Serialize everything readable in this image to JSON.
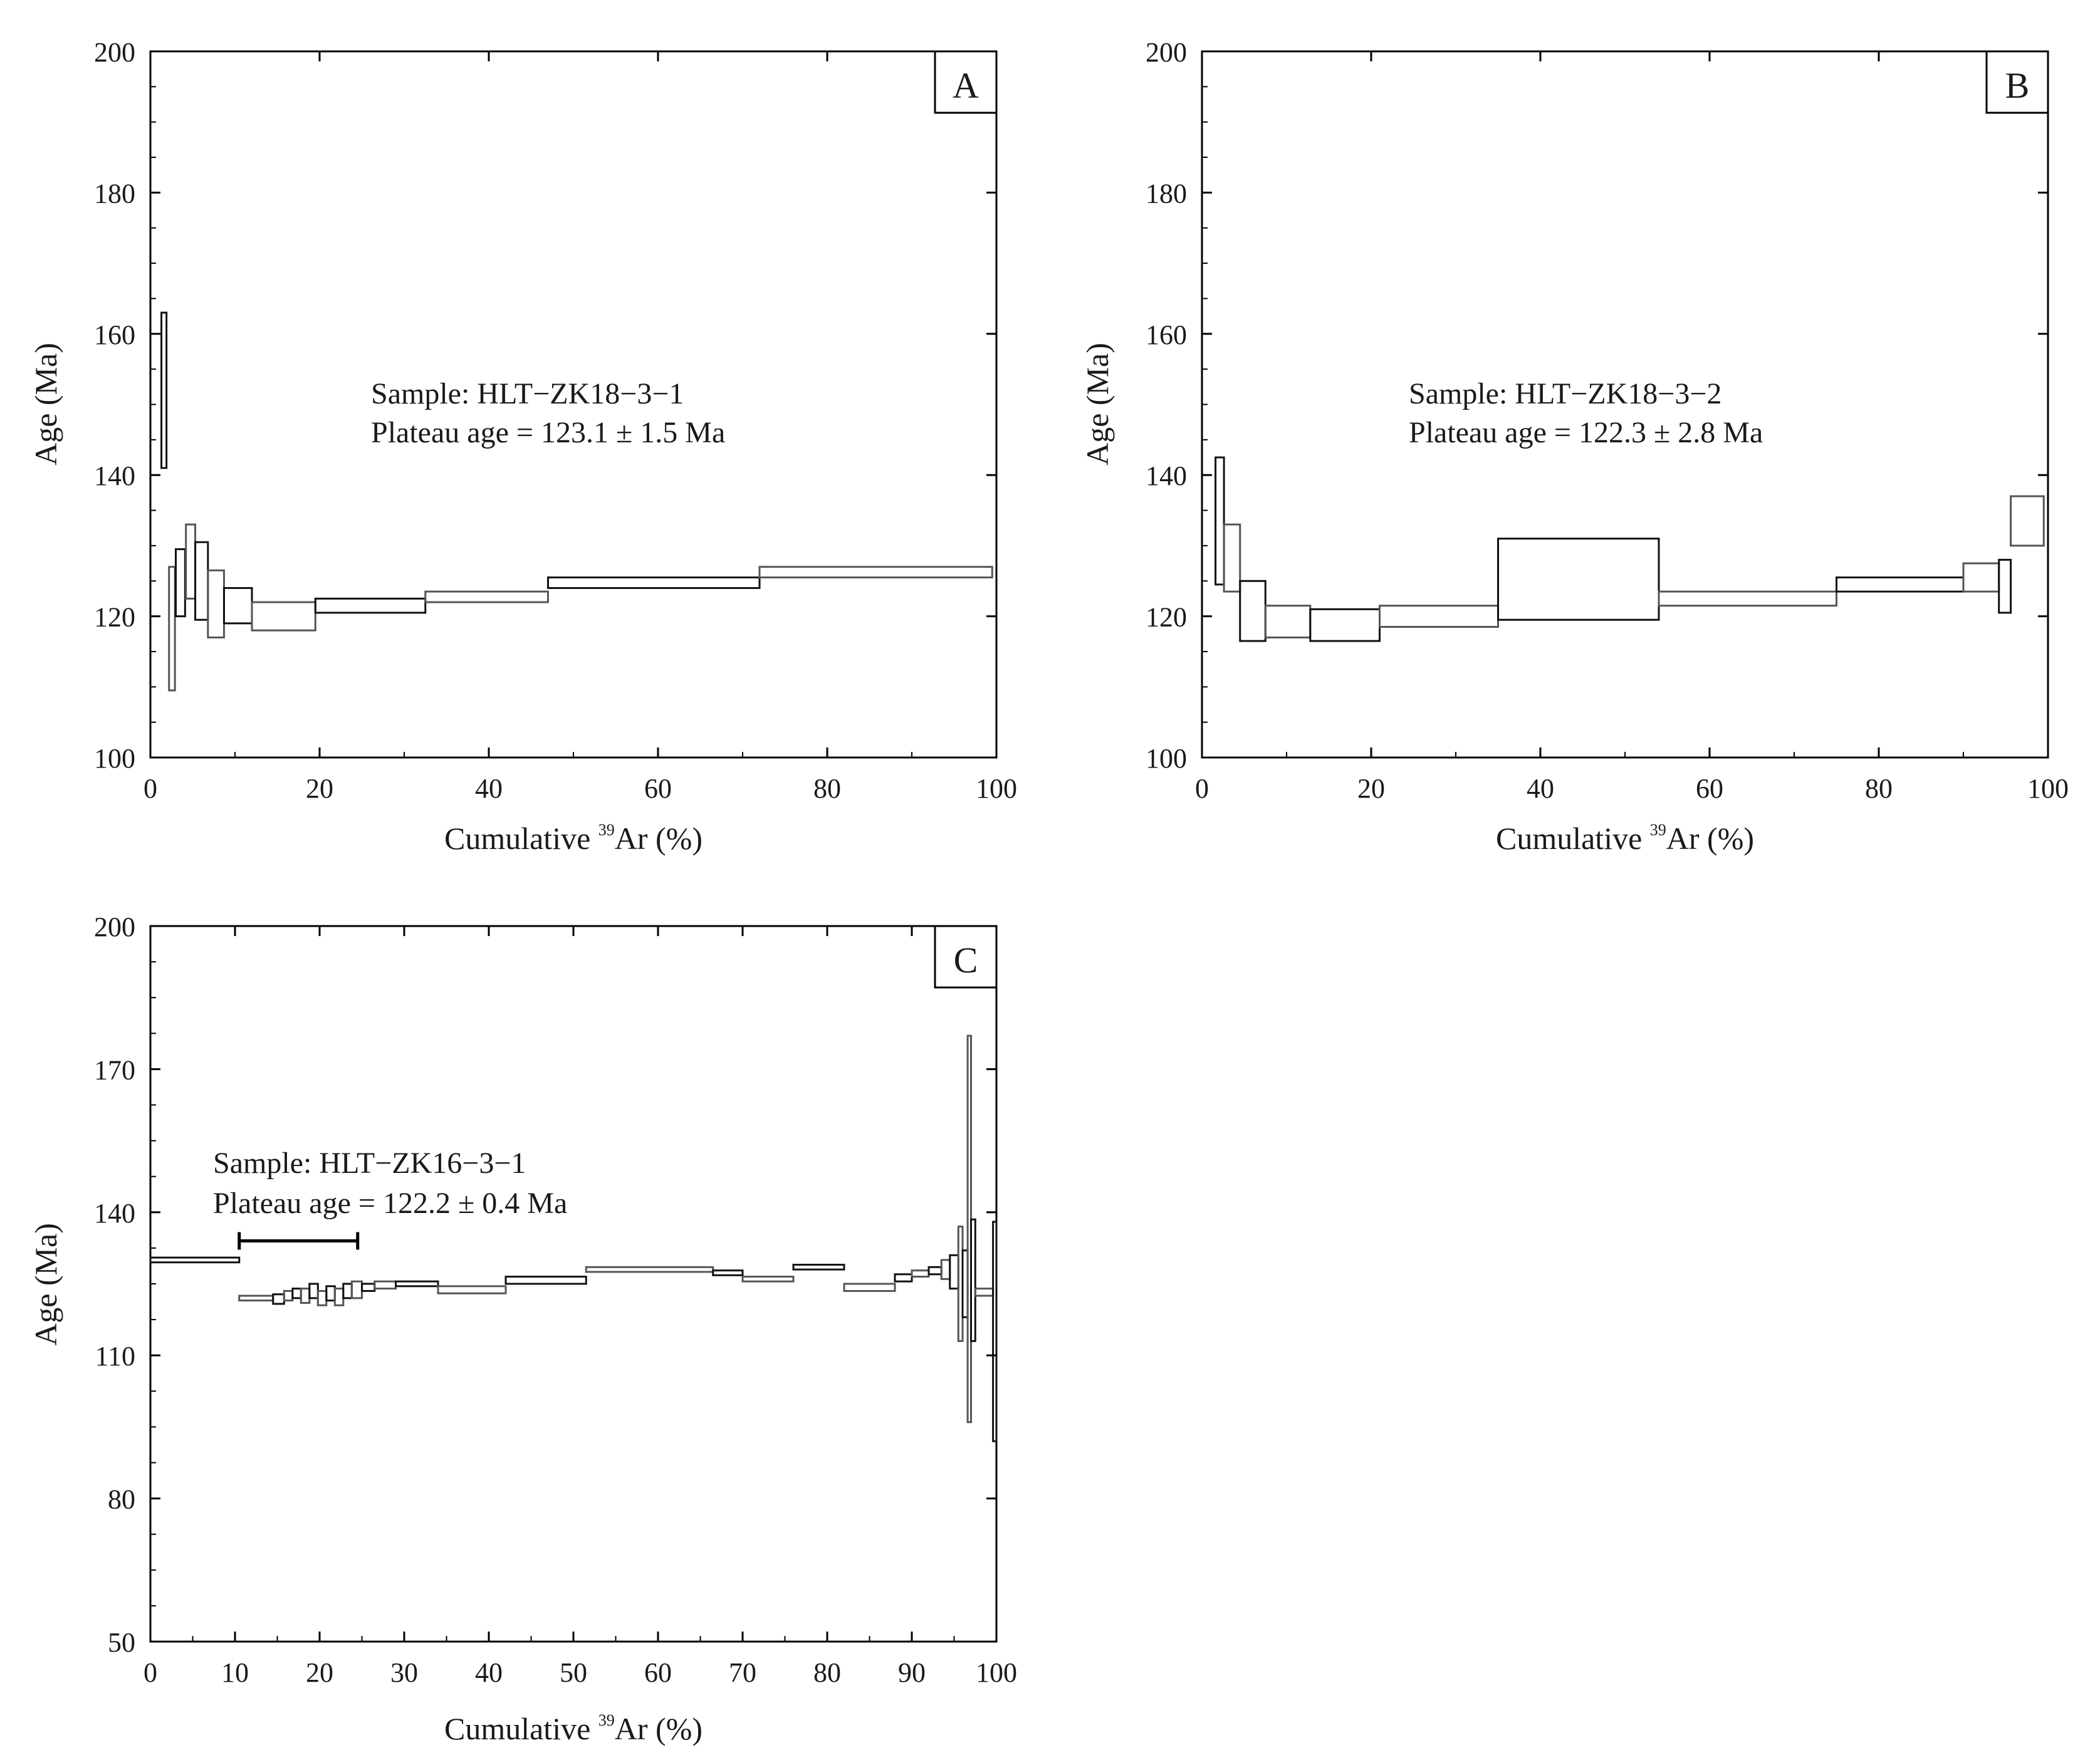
{
  "chart_data": [
    {
      "panel": "A",
      "type": "step-spectrum",
      "sample_label": "Sample: HLT−ZK18−3−1",
      "plateau_label": "Plateau age = 123.1 ± 1.5  Ma",
      "xlabel_prefix": "Cumulative ",
      "xlabel_sup": "39",
      "xlabel_suffix": "Ar (%)",
      "ylabel": "Age (Ma)",
      "xlim": [
        0,
        100
      ],
      "ylim": [
        100,
        200
      ],
      "xticks": [
        0,
        20,
        40,
        60,
        80,
        100
      ],
      "yticks": [
        100,
        120,
        140,
        160,
        180,
        200
      ],
      "steps": [
        {
          "x0": 1.3,
          "x1": 1.9,
          "ylo": 141,
          "yhi": 163
        },
        {
          "x0": 2.2,
          "x1": 2.9,
          "ylo": 109.5,
          "yhi": 127
        },
        {
          "x0": 3.0,
          "x1": 4.1,
          "ylo": 120,
          "yhi": 129.5
        },
        {
          "x0": 4.2,
          "x1": 5.3,
          "ylo": 122.5,
          "yhi": 133
        },
        {
          "x0": 5.3,
          "x1": 6.8,
          "ylo": 119.5,
          "yhi": 130.5
        },
        {
          "x0": 6.8,
          "x1": 8.7,
          "ylo": 117,
          "yhi": 126.5
        },
        {
          "x0": 8.7,
          "x1": 12.0,
          "ylo": 119,
          "yhi": 124
        },
        {
          "x0": 12.0,
          "x1": 19.5,
          "ylo": 118,
          "yhi": 122
        },
        {
          "x0": 19.5,
          "x1": 32.5,
          "ylo": 120.5,
          "yhi": 122.5
        },
        {
          "x0": 32.5,
          "x1": 47.0,
          "ylo": 122,
          "yhi": 123.5
        },
        {
          "x0": 47.0,
          "x1": 72.0,
          "ylo": 124,
          "yhi": 125.5
        },
        {
          "x0": 72.0,
          "x1": 99.5,
          "ylo": 125.5,
          "yhi": 127
        }
      ]
    },
    {
      "panel": "B",
      "type": "step-spectrum",
      "sample_label": "Sample: HLT−ZK18−3−2",
      "plateau_label": "Plateau age = 122.3 ± 2.8  Ma",
      "xlabel_prefix": "Cumulative ",
      "xlabel_sup": "39",
      "xlabel_suffix": "Ar (%)",
      "ylabel": "Age (Ma)",
      "xlim": [
        0,
        100
      ],
      "ylim": [
        100,
        200
      ],
      "xticks": [
        0,
        20,
        40,
        60,
        80,
        100
      ],
      "yticks": [
        100,
        120,
        140,
        160,
        180,
        200
      ],
      "steps": [
        {
          "x0": 1.6,
          "x1": 2.6,
          "ylo": 124.5,
          "yhi": 142.5
        },
        {
          "x0": 2.6,
          "x1": 4.5,
          "ylo": 123.5,
          "yhi": 133
        },
        {
          "x0": 4.5,
          "x1": 7.5,
          "ylo": 116.5,
          "yhi": 125
        },
        {
          "x0": 7.5,
          "x1": 12.8,
          "ylo": 117,
          "yhi": 121.5
        },
        {
          "x0": 12.8,
          "x1": 21.0,
          "ylo": 116.5,
          "yhi": 121
        },
        {
          "x0": 21.0,
          "x1": 35.0,
          "ylo": 118.5,
          "yhi": 121.5
        },
        {
          "x0": 35.0,
          "x1": 54.0,
          "ylo": 119.5,
          "yhi": 131
        },
        {
          "x0": 54.0,
          "x1": 75.0,
          "ylo": 121.5,
          "yhi": 123.5
        },
        {
          "x0": 75.0,
          "x1": 90.0,
          "ylo": 123.5,
          "yhi": 125.5
        },
        {
          "x0": 90.0,
          "x1": 94.2,
          "ylo": 123.5,
          "yhi": 127.5
        },
        {
          "x0": 94.2,
          "x1": 95.6,
          "ylo": 120.5,
          "yhi": 128
        },
        {
          "x0": 95.6,
          "x1": 99.5,
          "ylo": 130,
          "yhi": 137
        }
      ]
    },
    {
      "panel": "C",
      "type": "step-spectrum",
      "sample_label": "Sample: HLT−ZK16−3−1",
      "plateau_label": "Plateau age = 122.2 ± 0.4  Ma",
      "xlabel_prefix": "Cumulative ",
      "xlabel_sup": "39",
      "xlabel_suffix": "Ar (%)",
      "ylabel": "Age (Ma)",
      "xlim": [
        0,
        100
      ],
      "ylim": [
        50,
        200
      ],
      "xticks": [
        0,
        10,
        20,
        30,
        40,
        50,
        60,
        70,
        80,
        90,
        100
      ],
      "yticks": [
        50,
        80,
        110,
        140,
        170,
        200
      ],
      "plateau_range": {
        "x0": 10.5,
        "x1": 24.5,
        "y": 134
      },
      "steps": [
        {
          "x0": 0.0,
          "x1": 10.5,
          "ylo": 129.5,
          "yhi": 130.5
        },
        {
          "x0": 10.5,
          "x1": 14.5,
          "ylo": 121.5,
          "yhi": 122.5
        },
        {
          "x0": 14.5,
          "x1": 15.8,
          "ylo": 120.8,
          "yhi": 122.8
        },
        {
          "x0": 15.8,
          "x1": 16.8,
          "ylo": 121.5,
          "yhi": 123.5
        },
        {
          "x0": 16.8,
          "x1": 17.8,
          "ylo": 122,
          "yhi": 124
        },
        {
          "x0": 17.8,
          "x1": 18.8,
          "ylo": 121,
          "yhi": 124
        },
        {
          "x0": 18.8,
          "x1": 19.8,
          "ylo": 122,
          "yhi": 125
        },
        {
          "x0": 19.8,
          "x1": 20.8,
          "ylo": 120.5,
          "yhi": 123.5
        },
        {
          "x0": 20.8,
          "x1": 21.8,
          "ylo": 121.5,
          "yhi": 124.5
        },
        {
          "x0": 21.8,
          "x1": 22.8,
          "ylo": 120.5,
          "yhi": 124
        },
        {
          "x0": 22.8,
          "x1": 23.8,
          "ylo": 122,
          "yhi": 125
        },
        {
          "x0": 23.8,
          "x1": 25.0,
          "ylo": 122,
          "yhi": 125.5
        },
        {
          "x0": 25.0,
          "x1": 26.5,
          "ylo": 123.5,
          "yhi": 125
        },
        {
          "x0": 26.5,
          "x1": 29.0,
          "ylo": 124,
          "yhi": 125.5
        },
        {
          "x0": 29.0,
          "x1": 34.0,
          "ylo": 124.5,
          "yhi": 125.5
        },
        {
          "x0": 34.0,
          "x1": 42.0,
          "ylo": 123,
          "yhi": 124.5
        },
        {
          "x0": 42.0,
          "x1": 51.5,
          "ylo": 125,
          "yhi": 126.5
        },
        {
          "x0": 51.5,
          "x1": 66.5,
          "ylo": 127.5,
          "yhi": 128.5
        },
        {
          "x0": 66.5,
          "x1": 70.0,
          "ylo": 126.8,
          "yhi": 127.8
        },
        {
          "x0": 70.0,
          "x1": 76.0,
          "ylo": 125.5,
          "yhi": 126.5
        },
        {
          "x0": 76.0,
          "x1": 82.0,
          "ylo": 128,
          "yhi": 129
        },
        {
          "x0": 82.0,
          "x1": 88.0,
          "ylo": 123.5,
          "yhi": 125
        },
        {
          "x0": 88.0,
          "x1": 90.0,
          "ylo": 125.5,
          "yhi": 127
        },
        {
          "x0": 90.0,
          "x1": 92.0,
          "ylo": 126.5,
          "yhi": 127.8
        },
        {
          "x0": 92.0,
          "x1": 93.5,
          "ylo": 127,
          "yhi": 128.5
        },
        {
          "x0": 93.5,
          "x1": 94.5,
          "ylo": 126,
          "yhi": 130
        },
        {
          "x0": 94.5,
          "x1": 95.5,
          "ylo": 124,
          "yhi": 131
        },
        {
          "x0": 95.5,
          "x1": 96.0,
          "ylo": 113,
          "yhi": 137
        },
        {
          "x0": 96.0,
          "x1": 96.6,
          "ylo": 118,
          "yhi": 132
        },
        {
          "x0": 96.6,
          "x1": 97.0,
          "ylo": 96,
          "yhi": 177
        },
        {
          "x0": 97.0,
          "x1": 97.5,
          "ylo": 113,
          "yhi": 138.5
        },
        {
          "x0": 97.5,
          "x1": 99.6,
          "ylo": 122.5,
          "yhi": 124
        },
        {
          "x0": 99.6,
          "x1": 100.0,
          "ylo": 92,
          "yhi": 138
        }
      ]
    }
  ]
}
